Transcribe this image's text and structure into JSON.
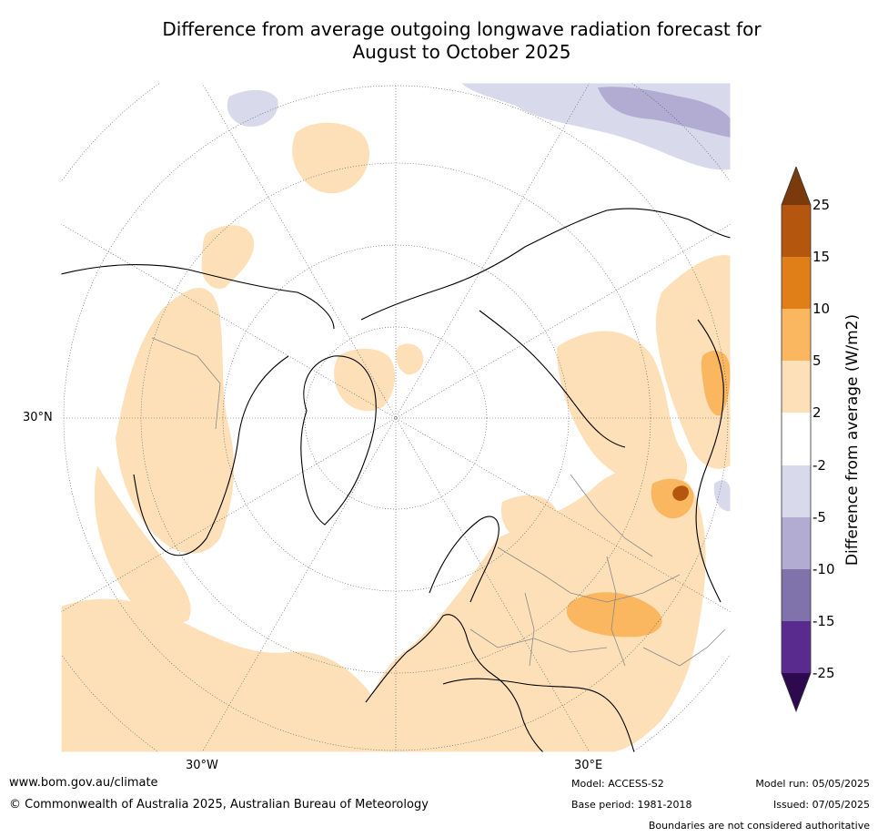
{
  "title_line1": "Difference from average outgoing longwave radiation forecast for",
  "title_line2": "August to October 2025",
  "map": {
    "projection": "polar stereographic (northern hemisphere)",
    "lat_label": "30°N",
    "lon_labels": [
      "30°W",
      "30°E"
    ]
  },
  "colorbar": {
    "title": "Difference from average (W/m2)",
    "ticks": [
      "25",
      "15",
      "10",
      "5",
      "2",
      "-2",
      "-5",
      "-10",
      "-15",
      "-25"
    ],
    "colors": {
      "above_25": "#7a3a0b",
      "15_to_25": "#b4560e",
      "10_to_15": "#e07f18",
      "5_to_10": "#fbb660",
      "2_to_5": "#fde0b8",
      "neutral": "#ffffff",
      "m5_to_m2": "#d9d9ec",
      "m10_to_m5": "#b2abd2",
      "m15_to_m10": "#8073ac",
      "m25_to_m15": "#5a2b8f",
      "below_m25": "#2d0a4e"
    }
  },
  "footer": {
    "website": "www.bom.gov.au/climate",
    "copyright": "© Commonwealth of Australia 2025, Australian Bureau of Meteorology",
    "model": "Model: ACCESS-S2",
    "base_period": "Base period: 1981-2018",
    "model_run": "Model run: 05/05/2025",
    "issued": "Issued: 07/05/2025",
    "disclaimer": "Boundaries are not considered authoritative"
  }
}
